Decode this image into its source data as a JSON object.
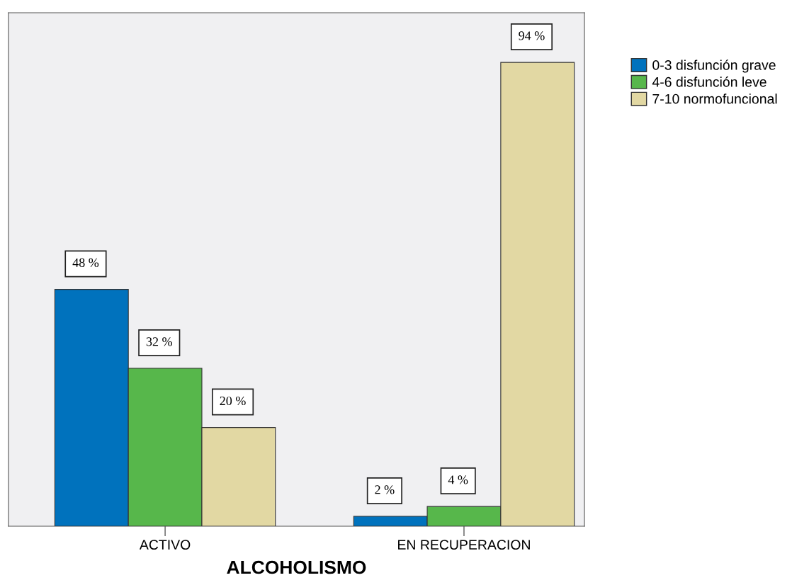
{
  "chart_data": {
    "type": "bar",
    "xlabel": "ALCOHOLISMO",
    "categories": [
      "ACTIVO",
      "EN RECUPERACION"
    ],
    "series": [
      {
        "name": "0-3 disfunción grave",
        "color": "#0072bd",
        "values": [
          48,
          2
        ],
        "value_labels": [
          "48 %",
          "2 %"
        ]
      },
      {
        "name": "4-6 disfunción leve",
        "color": "#57b74b",
        "values": [
          32,
          4
        ],
        "value_labels": [
          "32 %",
          "4 %"
        ]
      },
      {
        "name": "7-10 normofuncional",
        "color": "#e2d8a3",
        "values": [
          20,
          94
        ],
        "value_labels": [
          "20 %",
          "94 %"
        ]
      }
    ],
    "legend": "top right",
    "grid": false
  }
}
